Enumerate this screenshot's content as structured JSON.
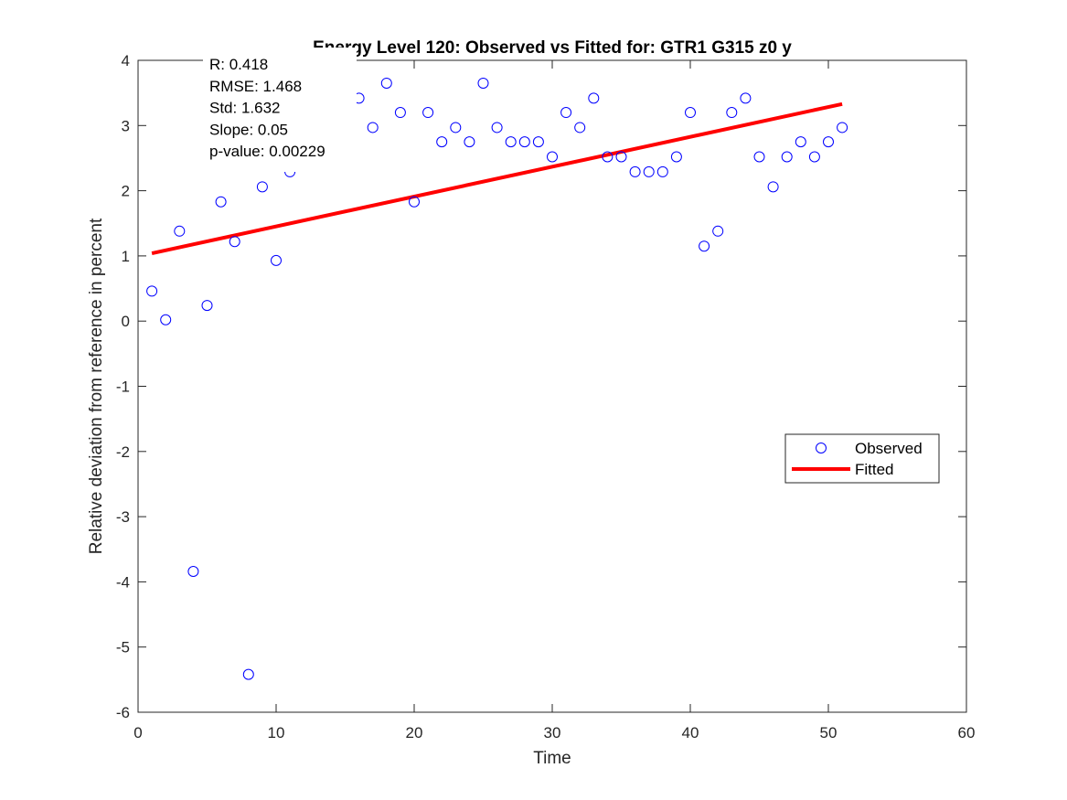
{
  "chart_data": {
    "type": "scatter",
    "title": "Energy Level 120: Observed vs Fitted for: GTR1 G315 z0 y",
    "xlabel": "Time",
    "ylabel": "Relative deviation from reference in percent",
    "xlim": [
      0,
      60
    ],
    "ylim": [
      -6,
      4
    ],
    "xticks": [
      0,
      10,
      20,
      30,
      40,
      50,
      60
    ],
    "yticks": [
      -6,
      -5,
      -4,
      -3,
      -2,
      -1,
      0,
      1,
      2,
      3,
      4
    ],
    "grid": false,
    "legend_position": "right",
    "stats": [
      "R: 0.418",
      "RMSE: 1.468",
      "Std: 1.632",
      "Slope: 0.05",
      "p-value: 0.00229"
    ],
    "series": [
      {
        "name": "Observed",
        "kind": "scatter",
        "marker": "circle-open",
        "color": "#0000ff",
        "x": [
          1,
          2,
          3,
          4,
          5,
          6,
          7,
          8,
          9,
          10,
          11,
          12,
          13,
          14,
          15,
          16,
          17,
          18,
          19,
          20,
          21,
          22,
          23,
          24,
          25,
          26,
          27,
          28,
          29,
          30,
          31,
          32,
          33,
          34,
          35,
          36,
          37,
          38,
          39,
          40,
          41,
          42,
          43,
          44,
          45,
          46,
          47,
          48,
          49,
          50,
          51
        ],
        "y": [
          0.46,
          0.02,
          1.38,
          -3.84,
          0.24,
          1.83,
          1.22,
          -5.42,
          2.06,
          0.93,
          2.29,
          2.75,
          3.2,
          3.42,
          3.2,
          3.42,
          2.97,
          3.65,
          3.2,
          1.83,
          3.2,
          2.75,
          2.97,
          2.75,
          3.65,
          2.97,
          2.75,
          2.75,
          2.75,
          2.52,
          3.2,
          2.97,
          3.42,
          2.52,
          2.52,
          2.29,
          2.29,
          2.29,
          2.52,
          3.2,
          1.15,
          1.38,
          3.2,
          3.42,
          2.52,
          2.06,
          2.52,
          2.75,
          2.52,
          2.75,
          2.97
        ]
      },
      {
        "name": "Fitted",
        "kind": "line",
        "color": "#ff0000",
        "x": [
          1,
          51
        ],
        "y": [
          1.04,
          3.33
        ]
      }
    ]
  }
}
